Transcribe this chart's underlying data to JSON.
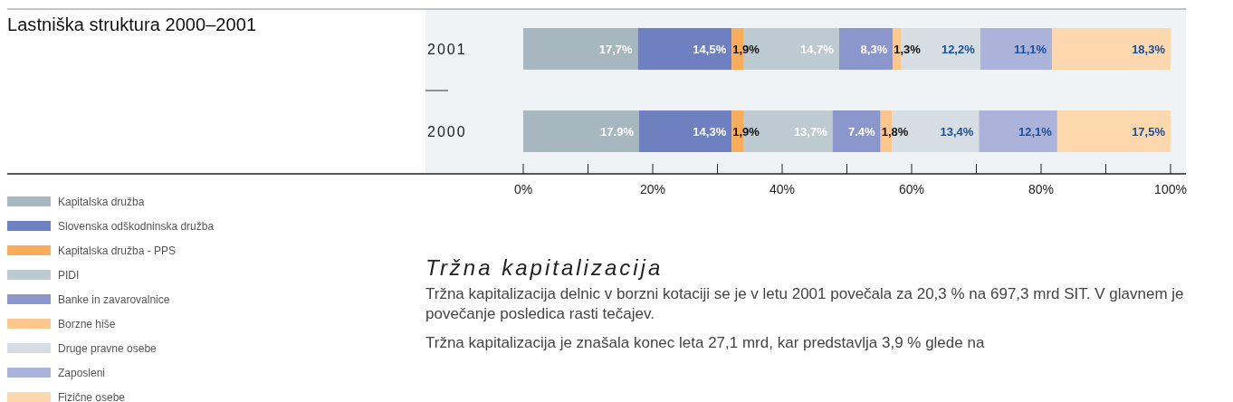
{
  "chart_data": {
    "type": "bar",
    "orientation": "horizontal",
    "stacked": true,
    "title": "Lastniška struktura 2000–2001",
    "categories": [
      "2001",
      "2000"
    ],
    "xlim": [
      0,
      100
    ],
    "xticks": [
      {
        "value": 0,
        "label": "0%"
      },
      {
        "value": 10,
        "label": null
      },
      {
        "value": 20,
        "label": "20%"
      },
      {
        "value": 30,
        "label": null
      },
      {
        "value": 40,
        "label": "40%"
      },
      {
        "value": 50,
        "label": null
      },
      {
        "value": 60,
        "label": "60%"
      },
      {
        "value": 70,
        "label": null
      },
      {
        "value": 80,
        "label": "80%"
      },
      {
        "value": 90,
        "label": null
      },
      {
        "value": 100,
        "label": "100%"
      }
    ],
    "legend": "bottom left",
    "grid": false,
    "series": [
      {
        "name": "Kapitalska družba",
        "color": "#a7b7bf",
        "values": [
          17.7,
          17.9
        ],
        "value_labels": [
          "17,7%",
          "17.9%"
        ]
      },
      {
        "name": "Slovenska odškodninska družba",
        "color": "#6e80bf",
        "values": [
          14.5,
          14.3
        ],
        "value_labels": [
          "14,5%",
          "14,3%"
        ]
      },
      {
        "name": "Kapitalska družba - PPS",
        "color": "#f9ad5c",
        "values": [
          1.9,
          1.9
        ],
        "value_labels": [
          "1,9%",
          "1,9%"
        ]
      },
      {
        "name": "PIDI",
        "color": "#bdcad2",
        "values": [
          14.7,
          13.7
        ],
        "value_labels": [
          "14,7%",
          "13,7%"
        ]
      },
      {
        "name": "Banke in zavarovalnice",
        "color": "#8b97cc",
        "values": [
          8.3,
          7.4
        ],
        "value_labels": [
          "8,3%",
          "7.4%"
        ]
      },
      {
        "name": "Borzne hiše",
        "color": "#fdc68c",
        "values": [
          1.3,
          1.8
        ],
        "value_labels": [
          "1,3%",
          "1,8%"
        ]
      },
      {
        "name": "Druge pravne osebe",
        "color": "#d6dee4",
        "values": [
          12.2,
          13.4
        ],
        "value_labels": [
          "12,2%",
          "13,4%"
        ]
      },
      {
        "name": "Zaposleni",
        "color": "#abb3db",
        "values": [
          11.1,
          12.1
        ],
        "value_labels": [
          "11,1%",
          "12,1%"
        ]
      },
      {
        "name": "Fizične osebe",
        "color": "#fdd8ae",
        "values": [
          18.3,
          17.5
        ],
        "value_labels": [
          "18,3%",
          "17,5%"
        ]
      }
    ],
    "annotations": [
      "Tržna kapitalizacija",
      "Tržna kapitalizacija delnic v borzni kotaciji se je v letu 2001 povečala za 20,3 % na 697,3 mrd SIT. V glavnem je povečanje posledica rasti tečajev.",
      "Tržna kapitalizacija je znašala konec leta 27,1 mrd, kar predstavlja 3,9 % glede na"
    ]
  }
}
